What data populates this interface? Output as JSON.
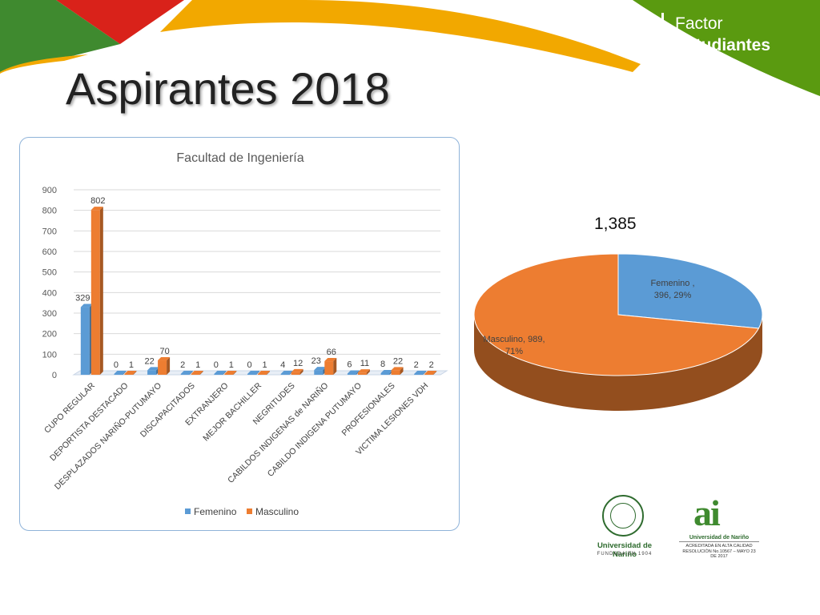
{
  "header": {
    "brand_line1": "Factor",
    "brand_line2": "Estudiantes",
    "title": "Aspirantes 2018"
  },
  "colors": {
    "femenino": "#5b9bd5",
    "masculino": "#ed7d31",
    "green": "#5a9a10",
    "red": "#d9221a",
    "yellow": "#f2a800"
  },
  "pie_total": "1,385",
  "logos": {
    "un_text": "Universidad de Nariño",
    "un_sub": "FUNDADA EN 1904",
    "ai_mark": "ai",
    "ai_u": "Universidad de Nariño",
    "ai_s1": "ACREDITADA EN ALTA CALIDAD",
    "ai_s2": "RESOLUCIÓN No.10567 – MAYO 23 DE 2017"
  },
  "chart_data": [
    {
      "type": "bar",
      "title": "Facultad de Ingeniería",
      "categories": [
        "CUPO REGULAR",
        "DEPORTISTA DESTACADO",
        "DESPLAZADOS NARIÑO-PUTUMAYO",
        "DISCAPACITADOS",
        "EXTRANJERO",
        "MEJOR BACHILLER",
        "NEGRITUDES",
        "CABILDOS INDIGENAS de NARIÑO",
        "CABILDO INDIGENA PUTUMAYO",
        "PROFESIONALES",
        "VICTIMA LESIONES VDH"
      ],
      "series": [
        {
          "name": "Femenino",
          "values": [
            329,
            0,
            22,
            2,
            0,
            0,
            4,
            23,
            6,
            8,
            2
          ]
        },
        {
          "name": "Masculino",
          "values": [
            802,
            1,
            70,
            1,
            1,
            1,
            12,
            66,
            11,
            22,
            2
          ]
        }
      ],
      "ylim": [
        0,
        900
      ],
      "yticks": [
        0,
        100,
        200,
        300,
        400,
        500,
        600,
        700,
        800,
        900
      ],
      "grid": true,
      "legend": "bottom"
    },
    {
      "type": "pie",
      "title": "1,385",
      "slices": [
        {
          "name": "Femenino",
          "value": 396,
          "percent": "29%",
          "label_l1": "Femenino ,",
          "label_l2": "396, 29%"
        },
        {
          "name": "Masculino",
          "value": 989,
          "percent": "71%",
          "label_l1": "Masculino, 989,",
          "label_l2": "71%"
        }
      ]
    }
  ]
}
